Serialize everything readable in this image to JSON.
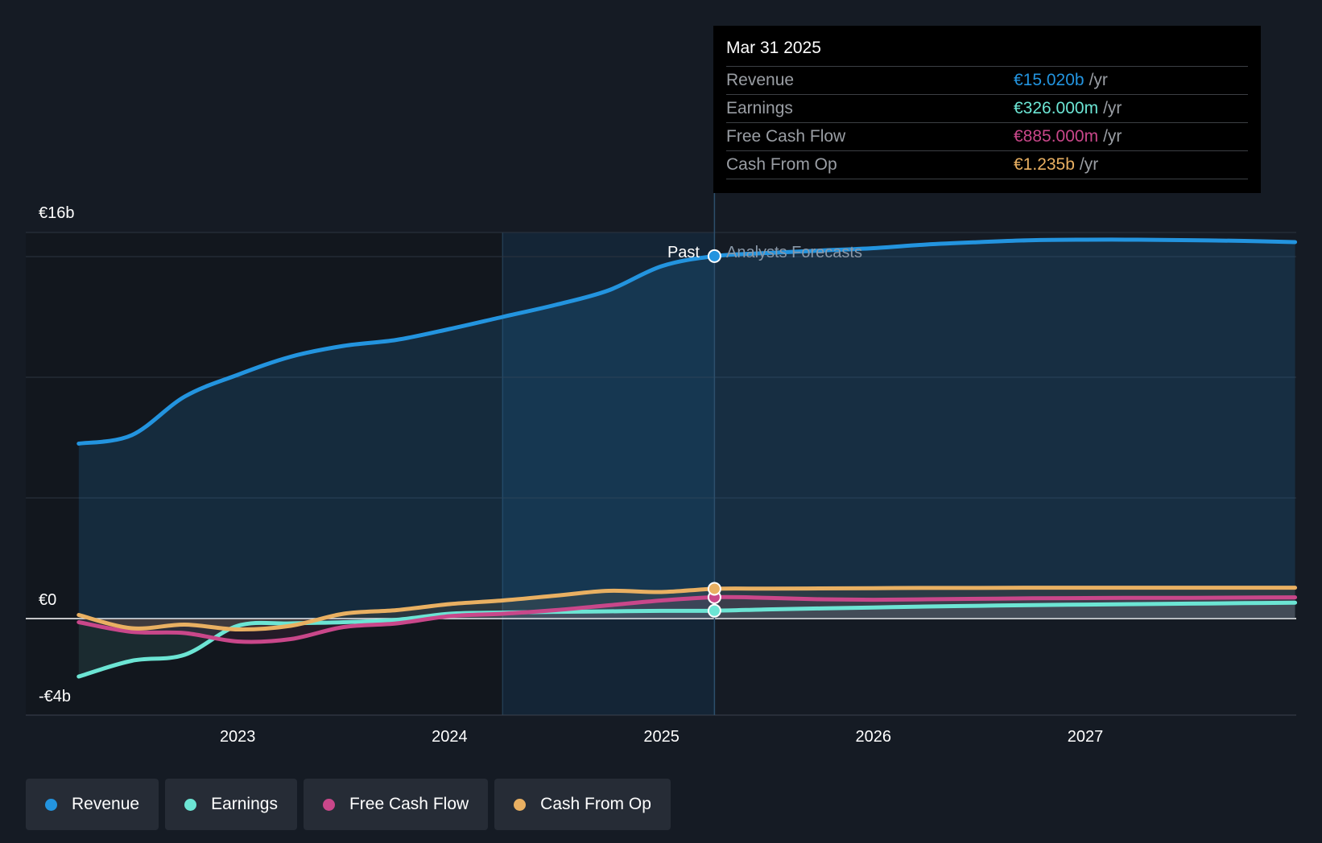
{
  "tooltip": {
    "date": "Mar 31 2025",
    "rows": [
      {
        "name": "Revenue",
        "value": "€15.020b",
        "unit": "/yr"
      },
      {
        "name": "Earnings",
        "value": "€326.000m",
        "unit": "/yr"
      },
      {
        "name": "Free Cash Flow",
        "value": "€885.000m",
        "unit": "/yr"
      },
      {
        "name": "Cash From Op",
        "value": "€1.235b",
        "unit": "/yr"
      }
    ]
  },
  "labels": {
    "past": "Past",
    "forecast": "Analysts Forecasts",
    "y_top": "€16b",
    "y_zero": "€0",
    "y_bottom": "-€4b"
  },
  "legend": [
    {
      "name": "Revenue"
    },
    {
      "name": "Earnings"
    },
    {
      "name": "Free Cash Flow"
    },
    {
      "name": "Cash From Op"
    }
  ],
  "colors": {
    "revenue": "#2394df",
    "earnings": "#6ce5d4",
    "fcf": "#c9478a",
    "cfo": "#e9b062",
    "background": "#151b24",
    "past_region": "#12171e",
    "highlight_region": "#16314a"
  },
  "chart_data": {
    "type": "line",
    "title": "",
    "xlabel": "",
    "ylabel": "",
    "ylim": [
      -4,
      16
    ],
    "y_unit": "€b",
    "x_ticks": [
      2023,
      2024,
      2025,
      2026,
      2027
    ],
    "xlim": [
      2022.25,
      2027.99
    ],
    "past_end": 2025.25,
    "highlight_start": 2024.25,
    "series": [
      {
        "name": "Revenue",
        "x": [
          2022.25,
          2022.5,
          2022.75,
          2023.0,
          2023.25,
          2023.5,
          2023.75,
          2024.0,
          2024.25,
          2024.5,
          2024.75,
          2025.0,
          2025.25,
          2025.5,
          2025.75,
          2026.0,
          2026.25,
          2026.5,
          2026.75,
          2027.0,
          2027.25,
          2027.5,
          2027.75,
          2027.99
        ],
        "values": [
          7.25,
          7.6,
          9.2,
          10.1,
          10.85,
          11.3,
          11.55,
          12.0,
          12.5,
          13.0,
          13.6,
          14.6,
          15.02,
          15.15,
          15.25,
          15.35,
          15.5,
          15.6,
          15.68,
          15.7,
          15.7,
          15.68,
          15.65,
          15.6
        ]
      },
      {
        "name": "Earnings",
        "x": [
          2022.25,
          2022.5,
          2022.75,
          2023.0,
          2023.25,
          2023.5,
          2023.75,
          2024.0,
          2024.25,
          2024.5,
          2024.75,
          2025.0,
          2025.25,
          2025.5,
          2025.75,
          2026.0,
          2026.25,
          2026.5,
          2026.75,
          2027.0,
          2027.25,
          2027.5,
          2027.75,
          2027.99
        ],
        "values": [
          -2.4,
          -1.75,
          -1.5,
          -0.3,
          -0.2,
          -0.15,
          -0.05,
          0.2,
          0.25,
          0.28,
          0.3,
          0.32,
          0.326,
          0.38,
          0.42,
          0.46,
          0.5,
          0.53,
          0.56,
          0.58,
          0.6,
          0.62,
          0.64,
          0.66
        ]
      },
      {
        "name": "Free Cash Flow",
        "x": [
          2022.25,
          2022.5,
          2022.75,
          2023.0,
          2023.25,
          2023.5,
          2023.75,
          2024.0,
          2024.25,
          2024.5,
          2024.75,
          2025.0,
          2025.25,
          2025.5,
          2025.75,
          2026.0,
          2026.25,
          2026.5,
          2026.75,
          2027.0,
          2027.25,
          2027.5,
          2027.75,
          2027.99
        ],
        "values": [
          -0.15,
          -0.55,
          -0.6,
          -0.95,
          -0.85,
          -0.35,
          -0.2,
          0.1,
          0.2,
          0.35,
          0.55,
          0.75,
          0.885,
          0.86,
          0.8,
          0.78,
          0.8,
          0.82,
          0.84,
          0.85,
          0.86,
          0.86,
          0.87,
          0.88
        ]
      },
      {
        "name": "Cash From Op",
        "x": [
          2022.25,
          2022.5,
          2022.75,
          2023.0,
          2023.25,
          2023.5,
          2023.75,
          2024.0,
          2024.25,
          2024.5,
          2024.75,
          2025.0,
          2025.25,
          2025.5,
          2025.75,
          2026.0,
          2026.25,
          2026.5,
          2026.75,
          2027.0,
          2027.25,
          2027.5,
          2027.75,
          2027.99
        ],
        "values": [
          0.15,
          -0.4,
          -0.25,
          -0.45,
          -0.3,
          0.2,
          0.35,
          0.6,
          0.75,
          0.95,
          1.15,
          1.1,
          1.235,
          1.24,
          1.25,
          1.26,
          1.27,
          1.27,
          1.28,
          1.28,
          1.28,
          1.28,
          1.28,
          1.28
        ]
      }
    ]
  }
}
